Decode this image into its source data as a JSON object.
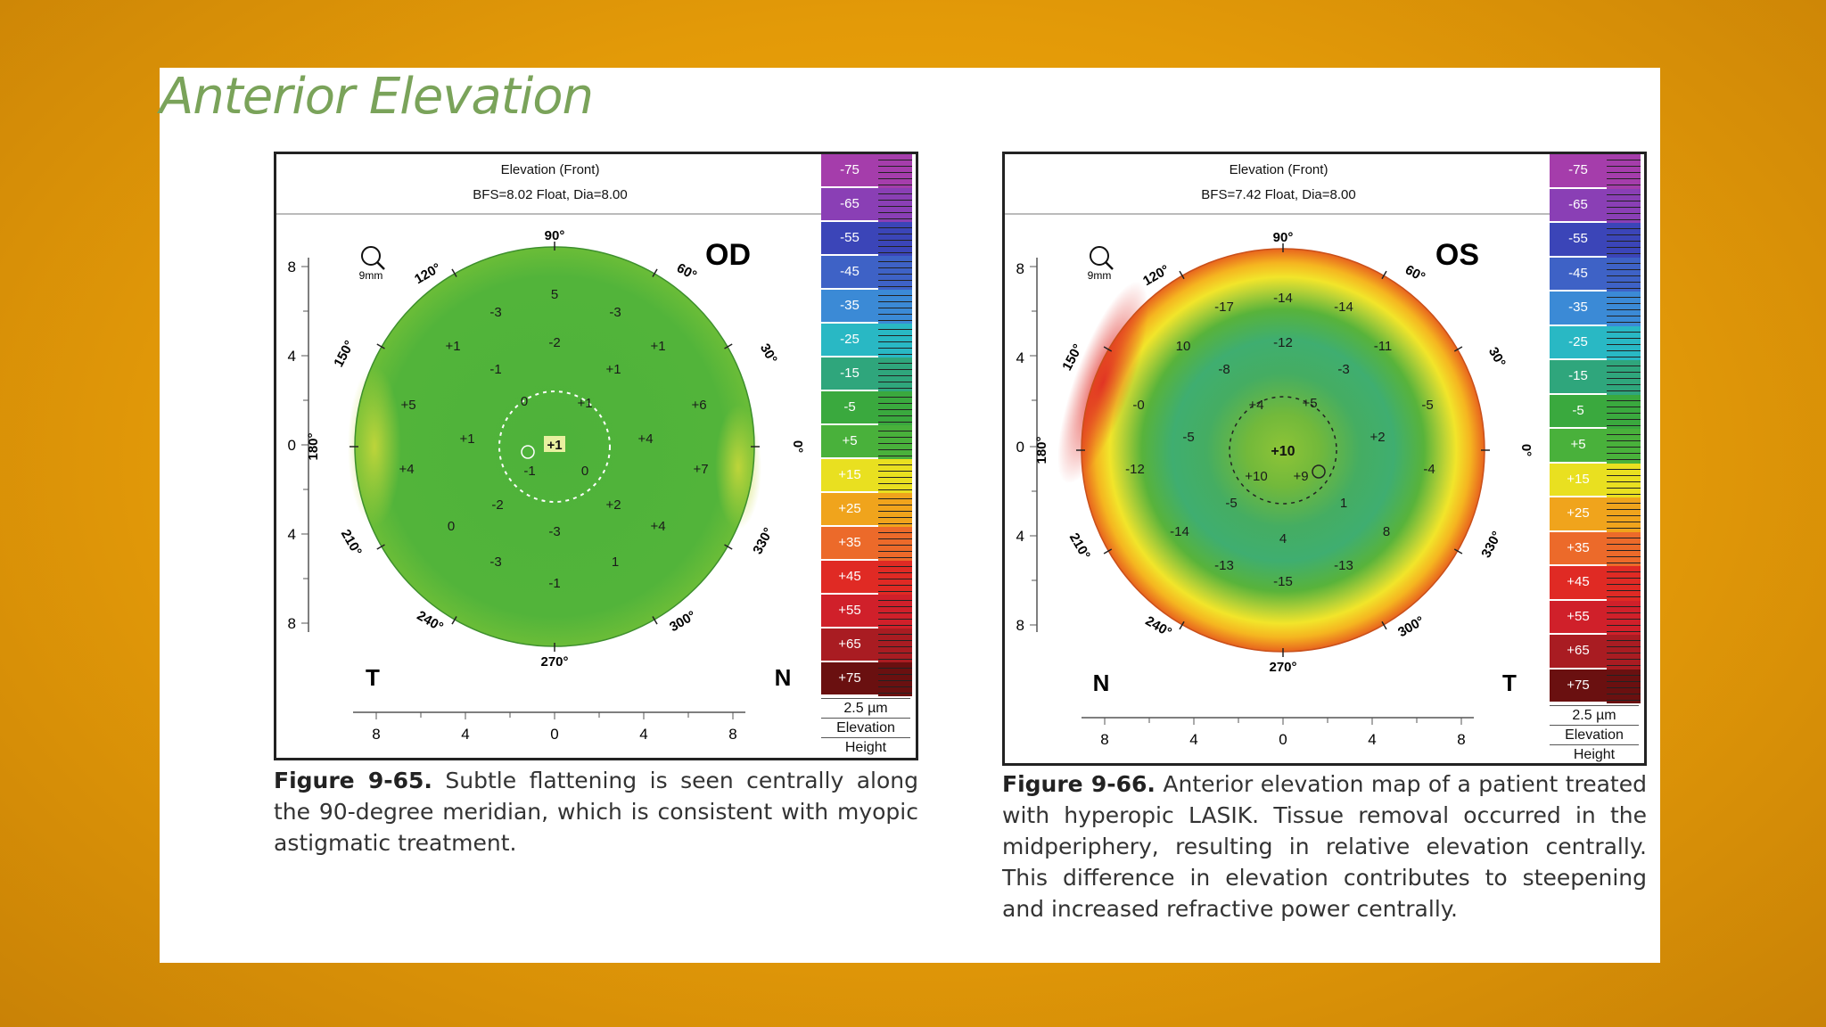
{
  "slide": {
    "title": "Anterior Elevation",
    "background_color": "#e39a08"
  },
  "left_map": {
    "header_line1": "Elevation (Front)",
    "header_line2": "BFS=8.02 Float, Dia=8.00",
    "eye": "OD",
    "left_letter": "T",
    "right_letter": "N",
    "zoom_label": "9mm",
    "angle_labels": [
      "90°",
      "60°",
      "30°",
      "0°",
      "330°",
      "300°",
      "270°",
      "240°",
      "210°",
      "180°",
      "150°",
      "120°"
    ],
    "axis_labels_y": [
      "8",
      "4",
      "0",
      "4",
      "8"
    ],
    "axis_labels_x": [
      "8",
      "4",
      "0",
      "4",
      "8"
    ],
    "values": [
      "5",
      "-3",
      "-3",
      "-2",
      "+1",
      "+1",
      "-1",
      "+1",
      "+5",
      "0",
      "+1",
      "+6",
      "+1",
      "+4",
      "+7",
      "+4",
      "-1",
      "0",
      "-2",
      "+2",
      "0",
      "+4",
      "-3",
      "-1",
      "-3",
      "1"
    ],
    "center_value": "+1",
    "scale_units": "2.5 µm",
    "scale_label1": "Elevation",
    "scale_label2": "Height"
  },
  "right_map": {
    "header_line1": "Elevation (Front)",
    "header_line2": "BFS=7.42 Float, Dia=8.00",
    "eye": "OS",
    "left_letter": "N",
    "right_letter": "T",
    "zoom_label": "9mm",
    "angle_labels": [
      "90°",
      "60°",
      "30°",
      "0°",
      "330°",
      "300°",
      "270°",
      "240°",
      "210°",
      "180°",
      "150°",
      "120°"
    ],
    "axis_labels_y": [
      "8",
      "4",
      "0",
      "4",
      "8"
    ],
    "axis_labels_x": [
      "8",
      "4",
      "0",
      "4",
      "8"
    ],
    "values": [
      "-14",
      "-17",
      "-14",
      "10",
      "-12",
      "-11",
      "-8",
      "-3",
      "-0",
      "+4",
      "+5",
      "-5",
      "-5",
      "+2",
      "-12",
      "-4",
      "-5",
      "1",
      "-14",
      "4",
      "8",
      "-13",
      "-15",
      "-13",
      "+10",
      "+9"
    ],
    "center_value": "+10",
    "scale_units": "2.5 µm",
    "scale_label1": "Elevation",
    "scale_label2": "Height"
  },
  "scale_colors": [
    {
      "label": "-75",
      "color": "#a53dab"
    },
    {
      "label": "-65",
      "color": "#8a3fb5"
    },
    {
      "label": "-55",
      "color": "#3b45b8"
    },
    {
      "label": "-45",
      "color": "#3e62c6"
    },
    {
      "label": "-35",
      "color": "#3b8ad6"
    },
    {
      "label": "-25",
      "color": "#29b8c4"
    },
    {
      "label": "-15",
      "color": "#2fa67c"
    },
    {
      "label": "-5",
      "color": "#3aa93e"
    },
    {
      "label": "+5",
      "color": "#49b13b"
    },
    {
      "label": "+15",
      "color": "#e9e020"
    },
    {
      "label": "+25",
      "color": "#f0a41c"
    },
    {
      "label": "+35",
      "color": "#ec6a2a"
    },
    {
      "label": "+45",
      "color": "#e02a24"
    },
    {
      "label": "+55",
      "color": "#d0202a"
    },
    {
      "label": "+65",
      "color": "#a91c22"
    },
    {
      "label": "+75",
      "color": "#6a1010"
    }
  ],
  "captions": {
    "left_label": "Figure 9-65.",
    "left_text": " Subtle flattening is seen centrally along the 90-degree meridian, which is consistent with myopic astigmatic treatment.",
    "right_label": "Figure 9-66.",
    "right_text": " Anterior elevation map of a patient treated with hyperopic LASIK. Tissue removal occurred in the midperiphery, resulting in relative elevation centrally. This difference in elevation contributes to steepening and increased refractive power centrally."
  }
}
